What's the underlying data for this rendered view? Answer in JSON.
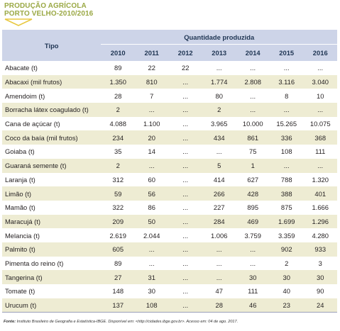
{
  "title": {
    "line1": "PRODUÇÃO AGRÍCOLA",
    "line2": "PORTO VELHO-2010/2016"
  },
  "table": {
    "header_tipo": "Tipo",
    "header_group": "Quantidade produzida",
    "years": [
      "2010",
      "2011",
      "2012",
      "2013",
      "2014",
      "2015",
      "2016"
    ],
    "rows": [
      {
        "name": "Abacate (t)",
        "values": [
          "89",
          "22",
          "22",
          "...",
          "...",
          "...",
          "..."
        ]
      },
      {
        "name": "Abacaxi (mil frutos)",
        "values": [
          "1.350",
          "810",
          "...",
          "1.774",
          "2.808",
          "3.116",
          "3.040"
        ]
      },
      {
        "name": "Amendoim (t)",
        "values": [
          "28",
          "7",
          "...",
          "80",
          "...",
          "8",
          "10"
        ]
      },
      {
        "name": "Borracha látex coagulado (t)",
        "values": [
          "2",
          "...",
          "...",
          "2",
          "...",
          "...",
          "..."
        ]
      },
      {
        "name": "Cana de açúcar (t)",
        "values": [
          "4.088",
          "1.100",
          "...",
          "3.965",
          "10.000",
          "15.265",
          "10.075"
        ]
      },
      {
        "name": "Coco da baía (mil frutos)",
        "values": [
          "234",
          "20",
          "...",
          "434",
          "861",
          "336",
          "368"
        ]
      },
      {
        "name": "Goiaba (t)",
        "values": [
          "35",
          "14",
          "...",
          "...",
          "75",
          "108",
          "111"
        ]
      },
      {
        "name": "Guaraná semente (t)",
        "values": [
          "2",
          "...",
          "...",
          "5",
          "1",
          "...",
          "..."
        ]
      },
      {
        "name": "Laranja (t)",
        "values": [
          "312",
          "60",
          "...",
          "414",
          "627",
          "788",
          "1.320"
        ]
      },
      {
        "name": "Limão (t)",
        "values": [
          "59",
          "56",
          "...",
          "266",
          "428",
          "388",
          "401"
        ]
      },
      {
        "name": "Mamão (t)",
        "values": [
          "322",
          "86",
          "...",
          "227",
          "895",
          "875",
          "1.666"
        ]
      },
      {
        "name": "Maracujá (t)",
        "values": [
          "209",
          "50",
          "...",
          "284",
          "469",
          "1.699",
          "1.296"
        ]
      },
      {
        "name": "Melancia (t)",
        "values": [
          "2.619",
          "2.044",
          "...",
          "1.006",
          "3.759",
          "3.359",
          "4.280"
        ]
      },
      {
        "name": "Palmito (t)",
        "values": [
          "605",
          "...",
          "...",
          "...",
          "...",
          "902",
          "933"
        ]
      },
      {
        "name": "Pimenta do reino (t)",
        "values": [
          "89",
          "...",
          "...",
          "...",
          "...",
          "2",
          "3"
        ]
      },
      {
        "name": "Tangerina (t)",
        "values": [
          "27",
          "31",
          "...",
          "...",
          "30",
          "30",
          "30"
        ]
      },
      {
        "name": "Tomate (t)",
        "values": [
          "148",
          "30",
          "...",
          "47",
          "111",
          "40",
          "90"
        ]
      },
      {
        "name": "Urucum (t)",
        "values": [
          "137",
          "108",
          "...",
          "28",
          "46",
          "23",
          "24"
        ]
      }
    ]
  },
  "source": {
    "label": "Fonte:",
    "text": " Instituto Brasileiro de Geografia e Estatística-IBGE. Disponível em: <http://cidades.ibge.gov.br>. Acesso em: 04 de ago. 2017."
  },
  "colors": {
    "title": "#9aa844",
    "header_bg": "#cdd4e8",
    "stripe": "#eeecd3"
  },
  "icons": {
    "title_arrow": "chevron-down-icon"
  }
}
